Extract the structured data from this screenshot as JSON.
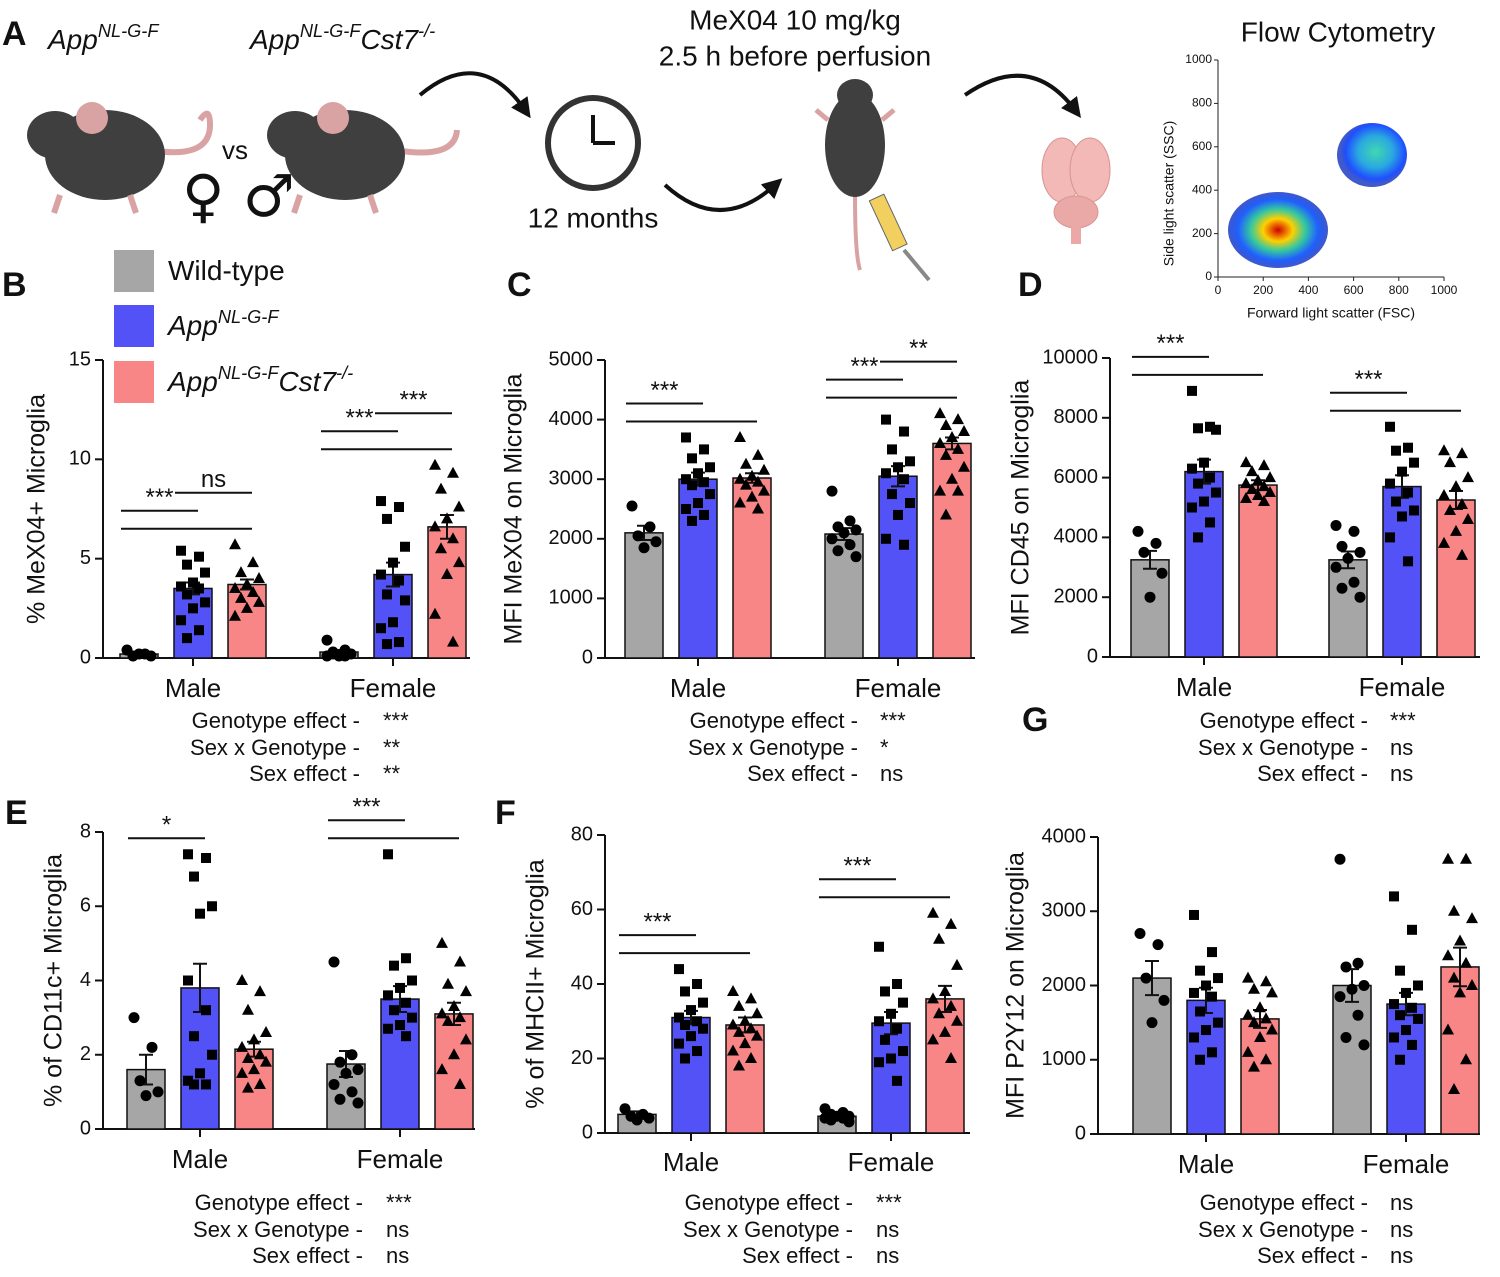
{
  "panel_label": "A",
  "schematic": {
    "genotypes": [
      [
        {
          "text": "App"
        },
        {
          "text": "NL-G-F",
          "sup": true
        }
      ],
      [
        {
          "text": "App"
        },
        {
          "text": "NL-G-F",
          "sup": true
        },
        {
          "text": "Cst7"
        },
        {
          "text": "-/-",
          "sup": true
        }
      ]
    ],
    "versus": "vs",
    "sexes": "♀ ♂",
    "age": "12 months",
    "treatment": [
      "MeX04 10 mg/kg",
      "2.5 h before perfusion"
    ],
    "flow": {
      "title": "Flow Cytometry",
      "xlabel": "Forward light scatter (FSC)",
      "ylabel": "Side light scatter (SSC)",
      "xlim": [
        0,
        1000
      ],
      "ylim": [
        0,
        1000
      ],
      "xticks": [
        0,
        200,
        400,
        600,
        800,
        1000
      ],
      "yticks": [
        0,
        200,
        400,
        600,
        800,
        1000
      ]
    }
  },
  "groups": [
    {
      "name_parts": [
        {
          "text": "Wild-type"
        }
      ],
      "color": "#a6a6a6",
      "marker": "circle"
    },
    {
      "name_parts": [
        {
          "text": "App"
        },
        {
          "text": "NL-G-F",
          "sup": true
        }
      ],
      "color": "#5252f7",
      "marker": "square"
    },
    {
      "name_parts": [
        {
          "text": "App"
        },
        {
          "text": "NL-G-F",
          "sup": true
        },
        {
          "text": "Cst7"
        },
        {
          "text": "-/-",
          "sup": true
        }
      ],
      "color": "#f98686",
      "marker": "triangle"
    }
  ],
  "chart_data": [
    {
      "type": "bar",
      "panel": "B",
      "ylabel": "% MeX04+ Microglia",
      "categories": [
        "Male",
        "Female"
      ],
      "ylim": [
        0,
        15
      ],
      "yticks": [
        0,
        5,
        10,
        15
      ],
      "series": [
        {
          "values": [
            0.2,
            0.3
          ],
          "errors": [
            0.1,
            0.1
          ],
          "points": [
            [
              0.4,
              0.2,
              0.1,
              0.1,
              0.2
            ],
            [
              0.9,
              0.4,
              0.3,
              0.2,
              0.1,
              0.1,
              0.1,
              0.2
            ]
          ]
        },
        {
          "values": [
            3.5,
            4.2
          ],
          "errors": [
            0.3,
            0.6
          ],
          "points": [
            [
              5.4,
              5.1,
              4.7,
              4.3,
              3.8,
              3.6,
              3.5,
              3.2,
              2.8,
              2.5,
              1.9,
              1.4,
              1.0
            ],
            [
              7.9,
              7.6,
              7.0,
              5.6,
              4.8,
              4.2,
              3.9,
              3.2,
              2.9,
              1.8,
              1.5,
              0.8,
              0.7
            ]
          ]
        },
        {
          "values": [
            3.7,
            6.6
          ],
          "errors": [
            0.25,
            0.6
          ],
          "points": [
            [
              5.7,
              4.8,
              4.3,
              4.0,
              3.7,
              3.5,
              3.3,
              3.0,
              2.8,
              2.5,
              2.1
            ],
            [
              9.7,
              9.3,
              8.5,
              7.6,
              7.0,
              6.6,
              6.0,
              5.5,
              4.8,
              4.2,
              2.2,
              0.8
            ]
          ]
        }
      ],
      "significance": [
        {
          "category": 0,
          "from": 0,
          "to": 2
        },
        {
          "category": 0,
          "from": 0,
          "to": 1,
          "label": "***"
        },
        {
          "category": 0,
          "from": 1,
          "to": 2,
          "label": "ns"
        },
        {
          "category": 1,
          "from": 0,
          "to": 2
        },
        {
          "category": 1,
          "from": 0,
          "to": 1,
          "label": "***"
        },
        {
          "category": 1,
          "from": 1,
          "to": 2,
          "label": "***"
        }
      ],
      "stats": [
        {
          "label": "Genotype effect -",
          "result": "***"
        },
        {
          "label": "Sex x Genotype -",
          "result": "**"
        },
        {
          "label": "Sex effect -",
          "result": "**"
        }
      ]
    },
    {
      "type": "bar",
      "panel": "C",
      "ylabel": "MFI MeX04 on Microglia",
      "categories": [
        "Male",
        "Female"
      ],
      "ylim": [
        0,
        5000
      ],
      "yticks": [
        0,
        1000,
        2000,
        3000,
        4000,
        5000
      ],
      "series": [
        {
          "values": [
            2100,
            2080
          ],
          "errors": [
            120,
            100
          ],
          "points": [
            [
              2550,
              2200,
              2050,
              1950,
              1850
            ],
            [
              2800,
              2300,
              2200,
              2150,
              2100,
              2000,
              1900,
              1800,
              1700
            ]
          ]
        },
        {
          "values": [
            3000,
            3050
          ],
          "errors": [
            110,
            170
          ],
          "points": [
            [
              3700,
              3500,
              3350,
              3200,
              3100,
              3000,
              2950,
              2900,
              2750,
              2600,
              2500,
              2400,
              2300
            ],
            [
              4000,
              3800,
              3500,
              3300,
              3200,
              3100,
              3000,
              2750,
              2600,
              2400,
              2000,
              1900
            ]
          ]
        },
        {
          "values": [
            3020,
            3600
          ],
          "errors": [
            80,
            100
          ],
          "points": [
            [
              3700,
              3400,
              3250,
              3150,
              3050,
              3000,
              2950,
              2900,
              2800,
              2700,
              2600,
              2500
            ],
            [
              4100,
              4000,
              3900,
              3800,
              3700,
              3600,
              3500,
              3400,
              3200,
              3000,
              2800,
              2800,
              2400
            ]
          ]
        }
      ],
      "significance": [
        {
          "category": 0,
          "from": 0,
          "to": 2
        },
        {
          "category": 0,
          "from": 0,
          "to": 1,
          "label": "***"
        },
        {
          "category": 1,
          "from": 0,
          "to": 2
        },
        {
          "category": 1,
          "from": 0,
          "to": 1,
          "label": "***"
        },
        {
          "category": 1,
          "from": 1,
          "to": 2,
          "label": "**"
        }
      ],
      "stats": [
        {
          "label": "Genotype effect -",
          "result": "***"
        },
        {
          "label": "Sex x Genotype -",
          "result": "*"
        },
        {
          "label": "Sex effect -",
          "result": "ns"
        }
      ]
    },
    {
      "type": "bar",
      "panel": "D",
      "ylabel": "MFI CD45 on Microglia",
      "categories": [
        "Male",
        "Female"
      ],
      "ylim": [
        0,
        10000
      ],
      "yticks": [
        0,
        2000,
        4000,
        6000,
        8000,
        10000
      ],
      "series": [
        {
          "values": [
            3250,
            3250
          ],
          "errors": [
            300,
            280
          ],
          "points": [
            [
              4200,
              3800,
              3500,
              2800,
              2000
            ],
            [
              4400,
              4200,
              3700,
              3500,
              3300,
              3000,
              2500,
              2300,
              2000
            ]
          ]
        },
        {
          "values": [
            6200,
            5700
          ],
          "errors": [
            400,
            380
          ],
          "points": [
            [
              8900,
              7700,
              7650,
              7600,
              6500,
              6300,
              6000,
              5800,
              5500,
              5200,
              5000,
              4500,
              4000
            ],
            [
              7700,
              7000,
              6900,
              6500,
              6200,
              5800,
              5500,
              5200,
              4900,
              4700,
              4000,
              3200
            ]
          ]
        },
        {
          "values": [
            5750,
            5250
          ],
          "errors": [
            160,
            300
          ],
          "points": [
            [
              6500,
              6400,
              6200,
              6000,
              5900,
              5800,
              5700,
              5600,
              5500,
              5400,
              5300,
              5200
            ],
            [
              6900,
              6800,
              6500,
              6000,
              5700,
              5400,
              5100,
              4900,
              4600,
              4200,
              3800,
              3400
            ]
          ]
        }
      ],
      "significance": [
        {
          "category": 0,
          "from": 0,
          "to": 2
        },
        {
          "category": 0,
          "from": 0,
          "to": 1,
          "label": "***"
        },
        {
          "category": 1,
          "from": 0,
          "to": 2
        },
        {
          "category": 1,
          "from": 0,
          "to": 1,
          "label": "***"
        }
      ],
      "stats": [
        {
          "label": "Genotype effect -",
          "result": "***"
        },
        {
          "label": "Sex x Genotype -",
          "result": "ns"
        },
        {
          "label": "Sex effect -",
          "result": "ns"
        }
      ]
    },
    {
      "type": "bar",
      "panel": "E",
      "ylabel": "% of CD11c+ Microglia",
      "categories": [
        "Male",
        "Female"
      ],
      "ylim": [
        0,
        8
      ],
      "yticks": [
        0,
        2,
        4,
        6,
        8
      ],
      "series": [
        {
          "values": [
            1.6,
            1.75
          ],
          "errors": [
            0.4,
            0.35
          ],
          "points": [
            [
              3.0,
              2.2,
              1.3,
              1.0,
              0.9
            ],
            [
              4.5,
              2.0,
              1.8,
              1.6,
              1.5,
              1.2,
              1.0,
              0.8,
              0.7
            ]
          ]
        },
        {
          "values": [
            3.8,
            3.5
          ],
          "errors": [
            0.65,
            0.35
          ],
          "points": [
            [
              7.4,
              7.3,
              6.8,
              6.0,
              5.8,
              4.0,
              3.2,
              2.5,
              2.0,
              1.5,
              1.3,
              1.2,
              1.2
            ],
            [
              7.4,
              4.6,
              4.4,
              4.0,
              3.8,
              3.6,
              3.4,
              3.2,
              3.0,
              2.8,
              2.7,
              2.5
            ]
          ]
        },
        {
          "values": [
            2.15,
            3.1
          ],
          "errors": [
            0.2,
            0.3
          ],
          "points": [
            [
              4.0,
              3.7,
              3.2,
              2.6,
              2.4,
              2.2,
              2.0,
              1.9,
              1.8,
              1.6,
              1.5,
              1.2,
              1.1
            ],
            [
              5.0,
              4.5,
              3.9,
              3.7,
              3.3,
              3.1,
              3.0,
              2.9,
              2.4,
              2.0,
              1.6,
              1.2
            ]
          ]
        }
      ],
      "significance": [
        {
          "category": 0,
          "from": 0,
          "to": 1,
          "label": "*"
        },
        {
          "category": 1,
          "from": 0,
          "to": 2
        },
        {
          "category": 1,
          "from": 0,
          "to": 1,
          "label": "***"
        }
      ],
      "stats": [
        {
          "label": "Genotype effect -",
          "result": "***"
        },
        {
          "label": "Sex x Genotype -",
          "result": "ns"
        },
        {
          "label": "Sex effect -",
          "result": "ns"
        }
      ]
    },
    {
      "type": "bar",
      "panel": "F",
      "ylabel": "% of MHCII+ Microglia",
      "categories": [
        "Male",
        "Female"
      ],
      "ylim": [
        0,
        80
      ],
      "yticks": [
        0,
        20,
        40,
        60,
        80
      ],
      "series": [
        {
          "values": [
            5,
            4.5
          ],
          "errors": [
            0.8,
            0.5
          ],
          "points": [
            [
              6.5,
              5,
              4.5,
              4,
              3.5
            ],
            [
              6.5,
              5.5,
              5,
              4.5,
              4.5,
              4,
              4,
              3.5,
              3
            ]
          ]
        },
        {
          "values": [
            31,
            29.5
          ],
          "errors": [
            1.8,
            3
          ],
          "points": [
            [
              44,
              40,
              38,
              35,
              33,
              31,
              30,
              29,
              28,
              26,
              24,
              22,
              20
            ],
            [
              50,
              40,
              38,
              35,
              32,
              30,
              28,
              25,
              22,
              20,
              19,
              14
            ]
          ]
        },
        {
          "values": [
            29,
            36
          ],
          "errors": [
            2,
            3.5
          ],
          "points": [
            [
              38,
              36,
              34,
              32,
              30,
              29,
              28,
              27,
              26,
              24,
              22,
              20,
              18
            ],
            [
              59,
              56,
              52,
              45,
              38,
              36,
              34,
              32,
              30,
              27,
              25,
              20
            ]
          ]
        }
      ],
      "significance": [
        {
          "category": 0,
          "from": 0,
          "to": 2
        },
        {
          "category": 0,
          "from": 0,
          "to": 1,
          "label": "***"
        },
        {
          "category": 1,
          "from": 0,
          "to": 2
        },
        {
          "category": 1,
          "from": 0,
          "to": 1,
          "label": "***"
        }
      ],
      "stats": [
        {
          "label": "Genotype effect -",
          "result": "***"
        },
        {
          "label": "Sex x Genotype -",
          "result": "ns"
        },
        {
          "label": "Sex effect -",
          "result": "ns"
        }
      ]
    },
    {
      "type": "bar",
      "panel": "G",
      "ylabel": "MFI P2Y12 on Microglia",
      "categories": [
        "Male",
        "Female"
      ],
      "ylim": [
        0,
        4000
      ],
      "yticks": [
        0,
        1000,
        2000,
        3000,
        4000
      ],
      "series": [
        {
          "values": [
            2100,
            2000
          ],
          "errors": [
            230,
            220
          ],
          "points": [
            [
              2700,
              2550,
              2100,
              1800,
              1500
            ],
            [
              3700,
              2300,
              2250,
              2000,
              1950,
              1850,
              1600,
              1300,
              1200
            ]
          ]
        },
        {
          "values": [
            1800,
            1750
          ],
          "errors": [
            170,
            150
          ],
          "points": [
            [
              2950,
              2450,
              2200,
              2100,
              2000,
              1900,
              1850,
              1650,
              1500,
              1400,
              1300,
              1100,
              1000
            ],
            [
              3200,
              2750,
              2200,
              2000,
              1900,
              1750,
              1700,
              1600,
              1550,
              1400,
              1300,
              1200,
              1000
            ]
          ]
        },
        {
          "values": [
            1550,
            2250
          ],
          "errors": [
            120,
            260
          ],
          "points": [
            [
              2100,
              2050,
              1950,
              1900,
              1700,
              1600,
              1550,
              1500,
              1400,
              1300,
              1100,
              1000,
              900
            ],
            [
              3700,
              3700,
              3000,
              2900,
              2600,
              2400,
              2300,
              2100,
              2000,
              1900,
              1400,
              1000,
              600
            ]
          ]
        }
      ],
      "significance": [],
      "stats": [
        {
          "label": "Genotype effect -",
          "result": "ns"
        },
        {
          "label": "Sex x Genotype -",
          "result": "ns"
        },
        {
          "label": "Sex effect -",
          "result": "ns"
        }
      ]
    }
  ]
}
